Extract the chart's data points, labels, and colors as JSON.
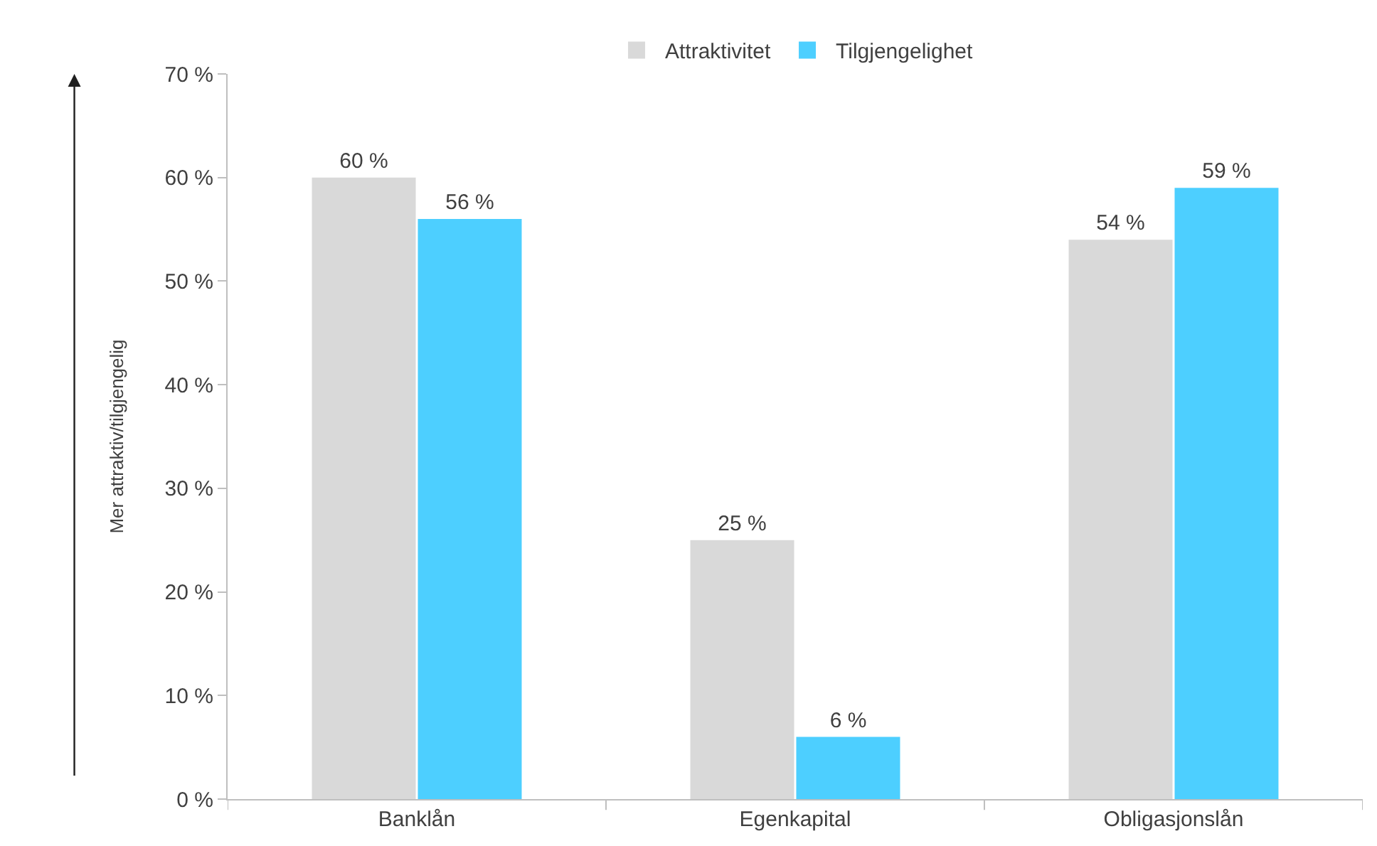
{
  "chart_data": {
    "type": "bar",
    "ylabel": "Mer attraktiv/tilgjengelig",
    "categories": [
      "Banklån",
      "Egenkapital",
      "Obligasjonslån"
    ],
    "series": [
      {
        "name": "Attraktivitet",
        "color": "#d9d9d9",
        "values": [
          60,
          25,
          54
        ],
        "value_labels": [
          "60 %",
          "25 %",
          "54 %"
        ]
      },
      {
        "name": "Tilgjengelighet",
        "color": "#4dcfff",
        "values": [
          56,
          6,
          59
        ],
        "value_labels": [
          "56 %",
          "6 %",
          "59 %"
        ]
      }
    ],
    "ylim": [
      0,
      70
    ],
    "yticks": [
      {
        "value": 0,
        "label": "0 %"
      },
      {
        "value": 10,
        "label": "10 %"
      },
      {
        "value": 20,
        "label": "20 %"
      },
      {
        "value": 30,
        "label": "30 %"
      },
      {
        "value": 40,
        "label": "40 %"
      },
      {
        "value": 50,
        "label": "50 %"
      },
      {
        "value": 60,
        "label": "60 %"
      },
      {
        "value": 70,
        "label": "70 %"
      }
    ],
    "legend": "top"
  }
}
